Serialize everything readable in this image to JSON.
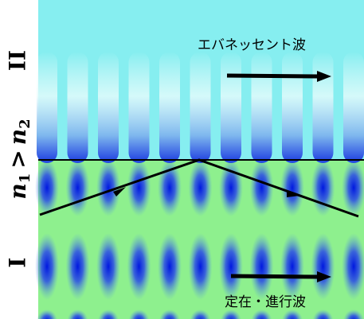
{
  "labels": {
    "region_upper": "II",
    "region_lower": "I",
    "index_n1": "n",
    "sub1": "1",
    "gt": ">",
    "index_n2": "n",
    "sub2": "2",
    "evanescent": "エバネッセント波",
    "standing": "定在・進行波"
  }
}
